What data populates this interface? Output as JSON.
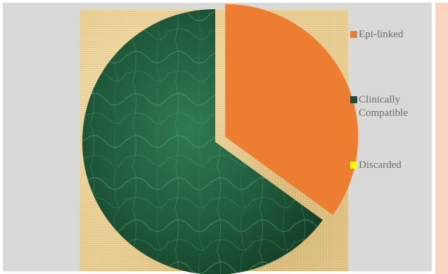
{
  "chart_data": {
    "type": "pie",
    "title": "",
    "legend_position": "right",
    "slices": [
      {
        "label": "Epi-linked",
        "value": 35,
        "color": "#ed7d31",
        "exploded": true
      },
      {
        "label": "Clinically Compatible",
        "value": 65,
        "color": "#1e4d33",
        "exploded": false
      },
      {
        "label": "Discarded",
        "value": 0,
        "color": "#ffff00",
        "exploded": false
      }
    ]
  },
  "legend": {
    "epi_linked": "Epi-linked",
    "clinically_line1": "Clinically",
    "clinically_line2": "Compatible",
    "discarded": "Discarded"
  }
}
